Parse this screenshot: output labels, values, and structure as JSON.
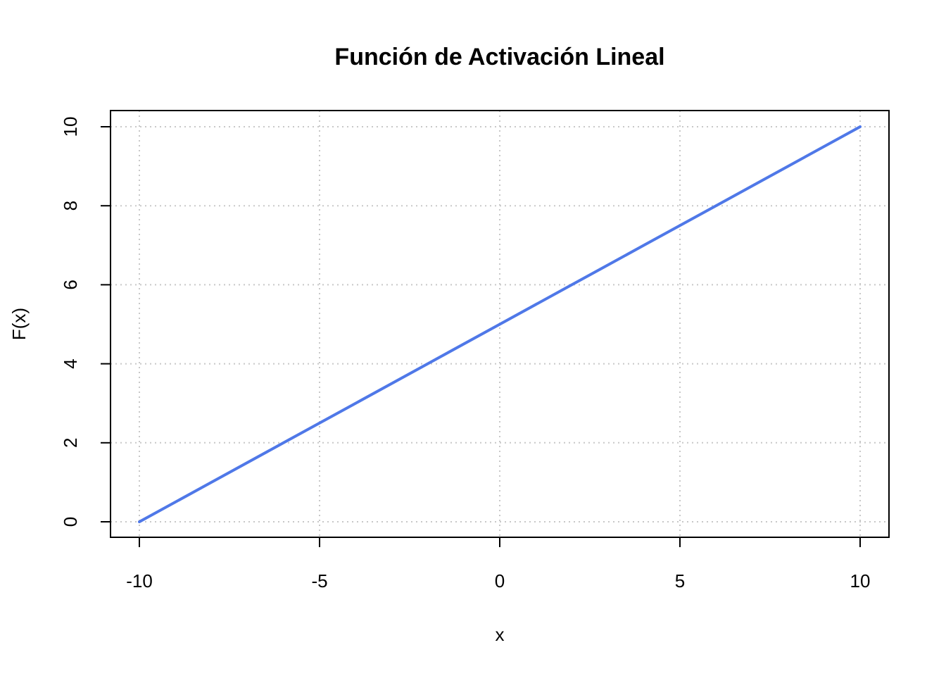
{
  "chart_data": {
    "type": "line",
    "title": "Función de Activación Lineal",
    "xlabel": "x",
    "ylabel": "F(x)",
    "xlim": [
      -10,
      10
    ],
    "ylim": [
      0,
      10
    ],
    "x_ticks": [
      -10,
      -5,
      0,
      5,
      10
    ],
    "y_ticks": [
      0,
      2,
      4,
      6,
      8,
      10
    ],
    "x_tick_labels": [
      "-10",
      "-5",
      "0",
      "5",
      "10"
    ],
    "y_tick_labels": [
      "0",
      "2",
      "4",
      "6",
      "8",
      "10"
    ],
    "grid": true,
    "series": [
      {
        "x": [
          -10,
          -8,
          -6,
          -4,
          -2,
          0,
          2,
          4,
          6,
          8,
          10
        ],
        "y": [
          0,
          1,
          2,
          3,
          4,
          5,
          6,
          7,
          8,
          9,
          10
        ],
        "color": "#4f78e8"
      }
    ]
  }
}
